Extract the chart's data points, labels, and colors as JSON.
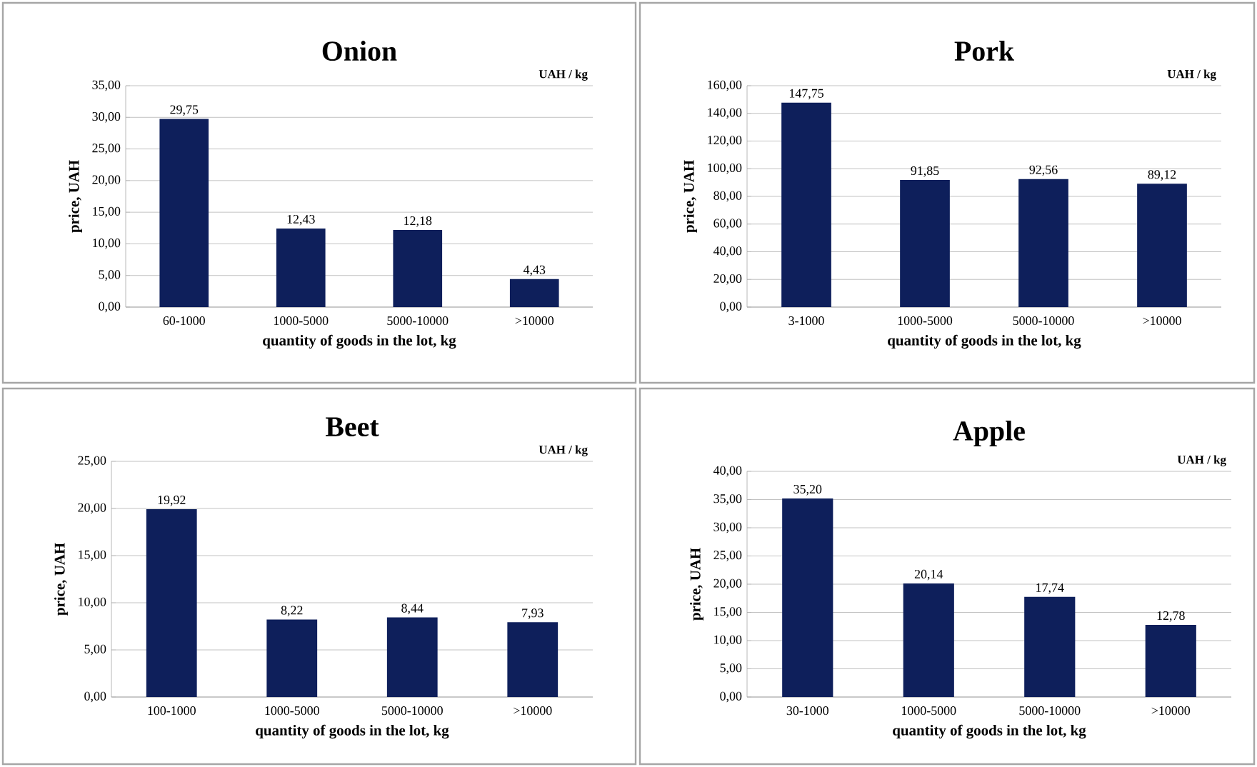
{
  "chart_data": [
    {
      "type": "bar",
      "title": "Onion",
      "annotations": [
        "UAH / kg"
      ],
      "xlabel": "quantity of goods in the lot, kg",
      "ylabel": "price, UAH",
      "categories": [
        "60-1000",
        "1000-5000",
        "5000-10000",
        ">10000"
      ],
      "values": [
        29.75,
        12.43,
        12.18,
        4.43
      ],
      "value_labels": [
        "29,75",
        "12,43",
        "12,18",
        "4,43"
      ],
      "color": "#0e1f5b",
      "ylim": [
        0,
        35
      ],
      "yticks": [
        {
          "value": 0,
          "label": "0,00"
        },
        {
          "value": 5,
          "label": "5,00"
        },
        {
          "value": 10,
          "label": "10,00"
        },
        {
          "value": 15,
          "label": "15,00"
        },
        {
          "value": 20,
          "label": "20,00"
        },
        {
          "value": 25,
          "label": "25,00"
        },
        {
          "value": 30,
          "label": "30,00"
        },
        {
          "value": 35,
          "label": "35,00"
        }
      ],
      "grid": "y"
    },
    {
      "type": "bar",
      "title": "Pork",
      "annotations": [
        "UAH / kg"
      ],
      "xlabel": "quantity of goods in the lot, kg",
      "ylabel": "price, UAH",
      "categories": [
        "3-1000",
        "1000-5000",
        "5000-10000",
        ">10000"
      ],
      "values": [
        147.75,
        91.85,
        92.56,
        89.12
      ],
      "value_labels": [
        "147,75",
        "91,85",
        "92,56",
        "89,12"
      ],
      "color": "#0e1f5b",
      "ylim": [
        0,
        160
      ],
      "yticks": [
        {
          "value": 0,
          "label": "0,00"
        },
        {
          "value": 20,
          "label": "20,00"
        },
        {
          "value": 40,
          "label": "40,00"
        },
        {
          "value": 60,
          "label": "60,00"
        },
        {
          "value": 80,
          "label": "80,00"
        },
        {
          "value": 100,
          "label": "100,00"
        },
        {
          "value": 120,
          "label": "120,00"
        },
        {
          "value": 140,
          "label": "140,00"
        },
        {
          "value": 160,
          "label": "160,00"
        }
      ],
      "grid": "y"
    },
    {
      "type": "bar",
      "title": "Beet",
      "annotations": [
        "UAH / kg"
      ],
      "xlabel": "quantity of goods in the lot, kg",
      "ylabel": "price, UAH",
      "categories": [
        "100-1000",
        "1000-5000",
        "5000-10000",
        ">10000"
      ],
      "values": [
        19.92,
        8.22,
        8.44,
        7.93
      ],
      "value_labels": [
        "19,92",
        "8,22",
        "8,44",
        "7,93"
      ],
      "color": "#0e1f5b",
      "ylim": [
        0,
        25
      ],
      "yticks": [
        {
          "value": 0,
          "label": "0,00"
        },
        {
          "value": 5,
          "label": "5,00"
        },
        {
          "value": 10,
          "label": "10,00"
        },
        {
          "value": 15,
          "label": "15,00"
        },
        {
          "value": 20,
          "label": "20,00"
        },
        {
          "value": 25,
          "label": "25,00"
        }
      ],
      "grid": "y"
    },
    {
      "type": "bar",
      "title": "Apple",
      "annotations": [
        "UAH / kg"
      ],
      "xlabel": "quantity of goods in the lot, kg",
      "ylabel": "price, UAH",
      "categories": [
        "30-1000",
        "1000-5000",
        "5000-10000",
        ">10000"
      ],
      "values": [
        35.2,
        20.14,
        17.74,
        12.78
      ],
      "value_labels": [
        "35,20",
        "20,14",
        "17,74",
        "12,78"
      ],
      "color": "#0e1f5b",
      "ylim": [
        0,
        40
      ],
      "yticks": [
        {
          "value": 0,
          "label": "0,00"
        },
        {
          "value": 5,
          "label": "5,00"
        },
        {
          "value": 10,
          "label": "10,00"
        },
        {
          "value": 15,
          "label": "15,00"
        },
        {
          "value": 20,
          "label": "20,00"
        },
        {
          "value": 25,
          "label": "25,00"
        },
        {
          "value": 30,
          "label": "30,00"
        },
        {
          "value": 35,
          "label": "35,00"
        },
        {
          "value": 40,
          "label": "40,00"
        }
      ],
      "grid": "y"
    }
  ]
}
